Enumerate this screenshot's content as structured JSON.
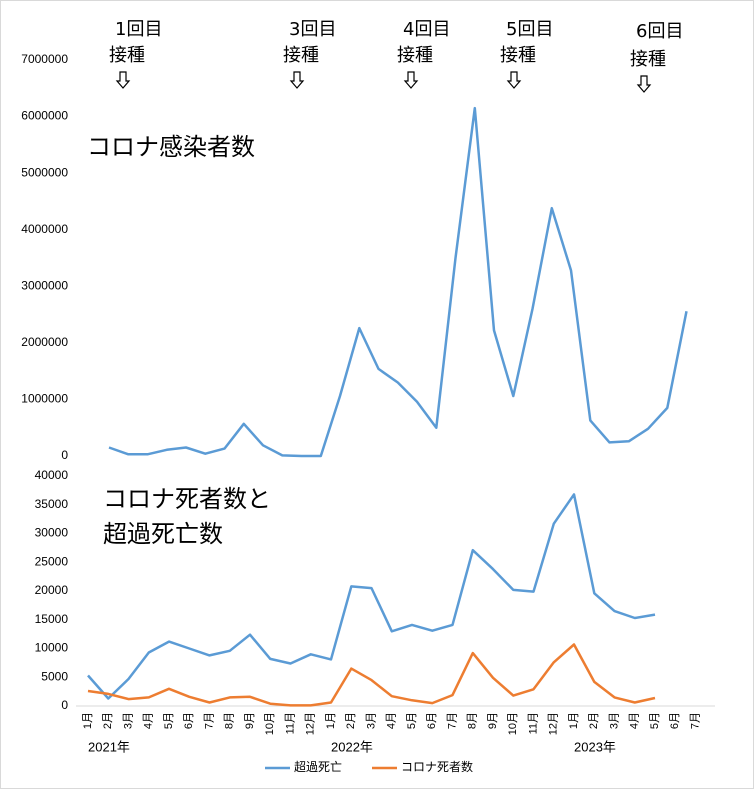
{
  "chart_data": [
    {
      "type": "line",
      "title": "コロナ感染者数",
      "annotations": [
        {
          "lines": [
            "1回目",
            "接種"
          ]
        },
        {
          "lines": [
            "3回目",
            "接種"
          ]
        },
        {
          "lines": [
            "4回目",
            "接種"
          ]
        },
        {
          "lines": [
            "5回目",
            "接種"
          ]
        },
        {
          "lines": [
            "6回目",
            "接種"
          ]
        }
      ],
      "series": [
        {
          "name": "コロナ感染者数",
          "color": "#5b9bd5",
          "values": [
            150000,
            30000,
            30000,
            110000,
            150000,
            40000,
            130000,
            570000,
            190000,
            10000,
            0,
            0,
            1060000,
            2260000,
            1540000,
            1300000,
            960000,
            500000,
            3500000,
            6150000,
            2220000,
            1060000,
            2600000,
            4380000,
            3280000,
            630000,
            240000,
            260000,
            480000,
            850000,
            2560000
          ]
        }
      ],
      "ylim": [
        0,
        7000000
      ],
      "yticks": [
        0,
        1000000,
        2000000,
        3000000,
        4000000,
        5000000,
        6000000,
        7000000
      ]
    },
    {
      "type": "line",
      "title_lines": [
        "コロナ死者数と",
        "超過死亡数"
      ],
      "categories": [
        "1月",
        "2月",
        "3月",
        "4月",
        "5月",
        "6月",
        "7月",
        "8月",
        "9月",
        "10月",
        "11月",
        "12月",
        "1月",
        "2月",
        "3月",
        "4月",
        "5月",
        "6月",
        "7月",
        "8月",
        "9月",
        "10月",
        "11月",
        "12月",
        "1月",
        "2月",
        "3月",
        "4月",
        "5月",
        "6月",
        "7月"
      ],
      "years": [
        "2021年",
        null,
        null,
        null,
        null,
        null,
        null,
        null,
        null,
        null,
        null,
        null,
        "2022年",
        null,
        null,
        null,
        null,
        null,
        null,
        null,
        null,
        null,
        null,
        null,
        "2023年",
        null,
        null,
        null,
        null,
        null,
        null
      ],
      "series": [
        {
          "name": "超過死亡",
          "color": "#5b9bd5",
          "values": [
            5300,
            1300,
            4700,
            9300,
            11200,
            10000,
            8800,
            9600,
            12400,
            8200,
            7400,
            9000,
            8100,
            20800,
            20500,
            13000,
            14100,
            13100,
            14100,
            27100,
            23800,
            20200,
            19900,
            31700,
            36800,
            19600,
            16500,
            15300,
            15900,
            null,
            null
          ]
        },
        {
          "name": "コロナ死者数",
          "color": "#ed7d31",
          "values": [
            2600,
            2100,
            1200,
            1500,
            3000,
            1600,
            600,
            1500,
            1600,
            400,
            100,
            100,
            600,
            6500,
            4500,
            1700,
            1000,
            500,
            1900,
            9200,
            4900,
            1800,
            2900,
            7600,
            10700,
            4200,
            1500,
            600,
            1400,
            null,
            null
          ]
        }
      ],
      "ylim": [
        0,
        40000
      ],
      "yticks": [
        0,
        5000,
        10000,
        15000,
        20000,
        25000,
        30000,
        35000,
        40000
      ],
      "legend": "bottom"
    }
  ]
}
